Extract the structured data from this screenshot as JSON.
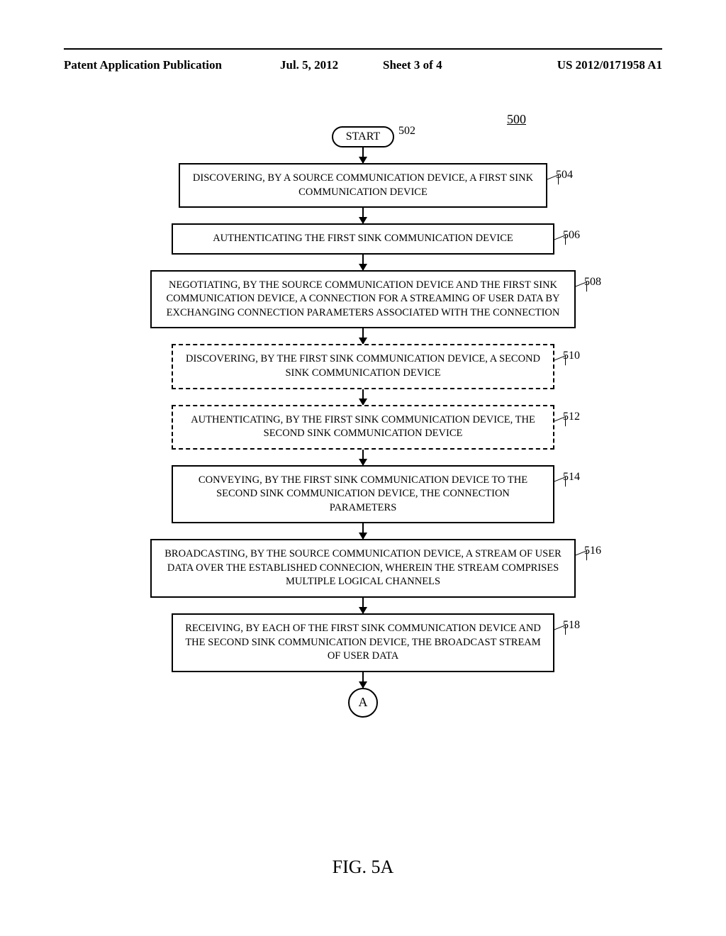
{
  "header": {
    "left": "Patent Application Publication",
    "date": "Jul. 5, 2012",
    "sheet": "Sheet 3 of 4",
    "pubno": "US 2012/0171958 A1"
  },
  "diagram": {
    "id": "500",
    "start": {
      "label": "START",
      "ref": "502"
    },
    "steps": [
      {
        "ref": "504",
        "dashed": false,
        "w": "w1",
        "text": "DISCOVERING, BY A SOURCE COMMUNICATION DEVICE, A FIRST SINK COMMUNICATION DEVICE"
      },
      {
        "ref": "506",
        "dashed": false,
        "w": "w2",
        "text": "AUTHENTICATING THE FIRST SINK COMMUNICATION DEVICE"
      },
      {
        "ref": "508",
        "dashed": false,
        "w": "w3",
        "text": "NEGOTIATING, BY THE SOURCE COMMUNICATION DEVICE AND THE FIRST SINK COMMUNICATION DEVICE, A CONNECTION FOR A STREAMING OF USER DATA BY EXCHANGING CONNECTION PARAMETERS ASSOCIATED WITH THE CONNECTION"
      },
      {
        "ref": "510",
        "dashed": true,
        "w": "w2",
        "text": "DISCOVERING, BY THE FIRST SINK COMMUNICATION DEVICE, A SECOND SINK COMMUNICATION DEVICE"
      },
      {
        "ref": "512",
        "dashed": true,
        "w": "w2",
        "text": "AUTHENTICATING, BY THE FIRST SINK COMMUNICATION DEVICE, THE SECOND SINK COMMUNICATION DEVICE"
      },
      {
        "ref": "514",
        "dashed": false,
        "w": "w2",
        "text": "CONVEYING, BY THE FIRST SINK COMMUNICATION DEVICE TO THE SECOND SINK COMMUNICATION DEVICE, THE CONNECTION PARAMETERS"
      },
      {
        "ref": "516",
        "dashed": false,
        "w": "w3",
        "text": "BROADCASTING, BY THE SOURCE COMMUNICATION DEVICE, A STREAM OF USER DATA OVER THE ESTABLISHED CONNECION, WHEREIN THE STREAM COMPRISES MULTIPLE LOGICAL CHANNELS"
      },
      {
        "ref": "518",
        "dashed": false,
        "w": "w2",
        "text": "RECEIVING, BY EACH OF THE FIRST SINK COMMUNICATION DEVICE AND THE SECOND SINK COMMUNICATION DEVICE, THE BROADCAST STREAM OF USER DATA"
      }
    ],
    "connector": "A",
    "caption": "FIG. 5A"
  }
}
